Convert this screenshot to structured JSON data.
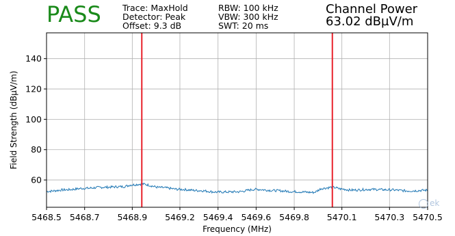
{
  "header": {
    "verdict": "PASS",
    "verdict_color": "#1a8a1a",
    "settings_col1": [
      "Trace: MaxHold",
      "Detector: Peak",
      "Offset: 9.3 dB"
    ],
    "settings_col2": [
      "RBW: 100 kHz",
      "VBW: 300 kHz",
      "SWT: 20 ms"
    ],
    "channel_power_label": "Channel Power",
    "channel_power_value": "63.02 dBµV/m"
  },
  "watermark": {
    "text": "ek",
    "icon": "logo-icon"
  },
  "chart_data": {
    "type": "line",
    "xlabel": "Frequency (MHz)",
    "ylabel": "Field Strength (dBµV/m)",
    "xlim": [
      5468.5,
      5470.5
    ],
    "ylim": [
      42,
      157
    ],
    "xticks": [
      5468.5,
      5468.7,
      5468.95,
      5469.2,
      5469.4,
      5469.6,
      5469.8,
      5470.05,
      5470.3,
      5470.5
    ],
    "xtick_labels": [
      "5468.5",
      "5468.7",
      "5468.9",
      "5469.2",
      "5469.4",
      "5469.6",
      "5469.8",
      "5470.1",
      "5470.3",
      "5470.5"
    ],
    "yticks": [
      60,
      80,
      100,
      120,
      140
    ],
    "ytick_labels": [
      "60",
      "80",
      "100",
      "120",
      "140"
    ],
    "grid": true,
    "series_color": "#1f77b4",
    "marker_color": "#e8202a",
    "markers": [
      5469.0,
      5470.0
    ],
    "series": [
      {
        "x": [
          5468.5,
          5468.6,
          5468.7,
          5468.8,
          5468.9,
          5468.95,
          5469.0,
          5469.1,
          5469.2,
          5469.3,
          5469.4,
          5469.5,
          5469.6,
          5469.7,
          5469.8,
          5469.9,
          5469.95,
          5470.0,
          5470.05,
          5470.1,
          5470.2,
          5470.3,
          5470.4,
          5470.5
        ],
        "y": [
          52.5,
          53.5,
          54.5,
          55.2,
          55.6,
          56.8,
          57.3,
          55.0,
          53.8,
          53.0,
          52.0,
          52.2,
          53.8,
          53.0,
          52.3,
          51.8,
          54.5,
          55.2,
          54.0,
          53.3,
          53.8,
          53.5,
          52.8,
          53.2
        ]
      }
    ]
  }
}
